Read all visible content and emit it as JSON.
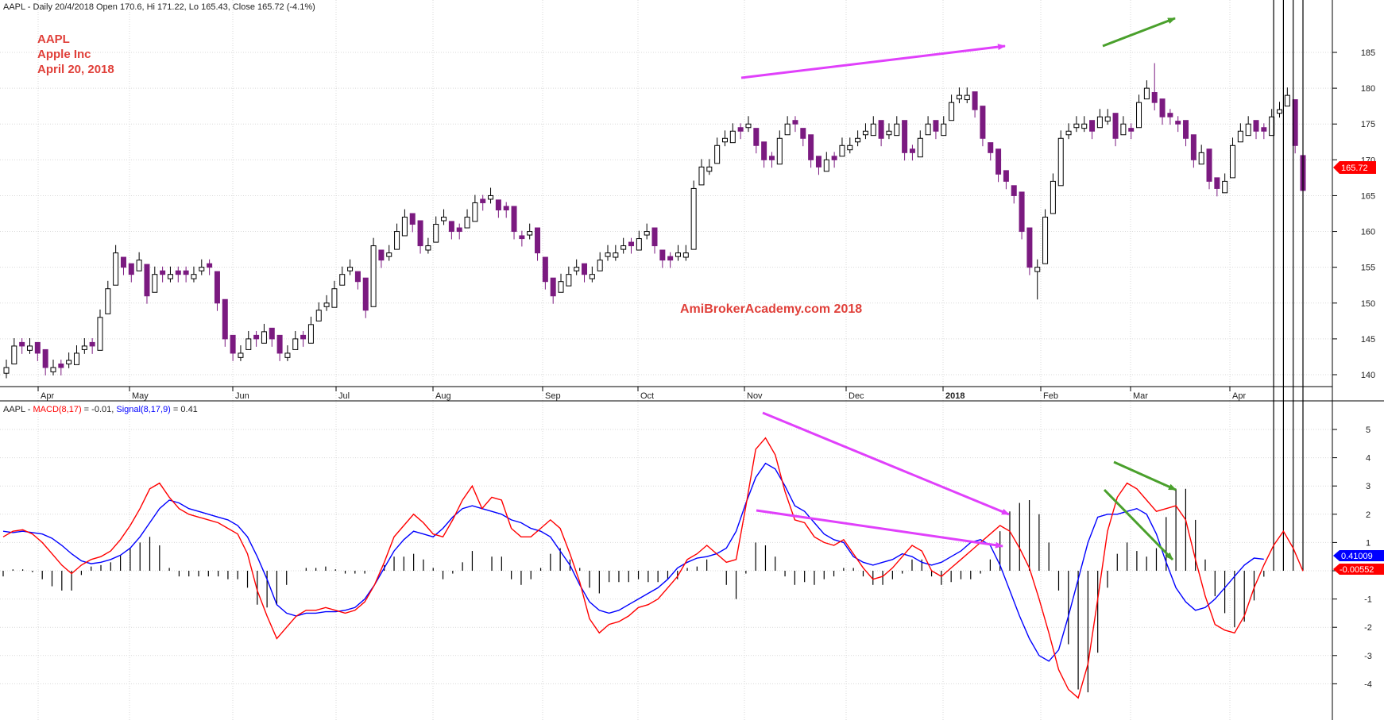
{
  "header": {
    "price_line": "AAPL - Daily 20/4/2018 Open 170.6, Hi 171.22, Lo 165.43, Close 165.72 (-4.1%)",
    "macd_prefix": "AAPL - ",
    "macd_label": "MACD(8,17)",
    "macd_value": " = -0.01, ",
    "signal_label": "Signal(8,17,9)",
    "signal_value": " = 0.41"
  },
  "annotation": {
    "line1": "AAPL",
    "line2": "Apple Inc",
    "line3": "April 20, 2018"
  },
  "watermark": "AmiBrokerAcademy.com  2018",
  "badges": {
    "close": "165.72",
    "signal": "0.41009",
    "macd": "-0.00552"
  },
  "colors": {
    "up_candle": "#000000",
    "down_candle": "#7b1a80",
    "macd": "#ff0000",
    "signal": "#0000ff",
    "histogram": "#000000",
    "divergence_magenta": "#e040fb",
    "divergence_green": "#4aa02c",
    "text_red": "#e0403a",
    "grid": "#d9d9d9"
  },
  "chart_data": [
    {
      "type": "candlestick",
      "title": "AAPL - Daily 20/4/2018",
      "y_ticks": [
        140,
        145,
        150,
        155,
        160,
        165,
        170,
        175,
        180,
        185
      ],
      "x_labels": [
        "Apr",
        "May",
        "Jun",
        "Jul",
        "Aug",
        "Sep",
        "Oct",
        "Nov",
        "Dec",
        "2018",
        "Feb",
        "Mar",
        "Apr"
      ],
      "grid": true,
      "last": {
        "open": 170.6,
        "high": 171.22,
        "low": 165.43,
        "close": 165.72
      },
      "closes": [
        141,
        144,
        144,
        144,
        143,
        141,
        141,
        141,
        142,
        143,
        144,
        144,
        148,
        152,
        157,
        155,
        154,
        156,
        151,
        154,
        154,
        154,
        154,
        154,
        154,
        155,
        155,
        150,
        145,
        143,
        143,
        145,
        145,
        146,
        145,
        143,
        143,
        145,
        145,
        147,
        149,
        150,
        152,
        154,
        155,
        153,
        149,
        158,
        156,
        157,
        160,
        162,
        161,
        158,
        158,
        161,
        162,
        160,
        160,
        162,
        164,
        164,
        165,
        163,
        163,
        160,
        159,
        160,
        157,
        153,
        151,
        153,
        154,
        155,
        154,
        154,
        156,
        157,
        157,
        158,
        158,
        159,
        160,
        158,
        156,
        156,
        157,
        157,
        166,
        169,
        169,
        172,
        173,
        174,
        174,
        175,
        172,
        170,
        170,
        173,
        175,
        175,
        173,
        170,
        169,
        170,
        170,
        172,
        172,
        173,
        174,
        175,
        173,
        174,
        175,
        171,
        171,
        173,
        175,
        174,
        175,
        178,
        179,
        179,
        177,
        173,
        171,
        168,
        167,
        165,
        160,
        155,
        155,
        162,
        167,
        173,
        174,
        175,
        175,
        174,
        176,
        176,
        173,
        175,
        174,
        178,
        180,
        178,
        176,
        176,
        175,
        173,
        170,
        171,
        167,
        166,
        167,
        172,
        174,
        175,
        174,
        174,
        176,
        177,
        179,
        172,
        165.72
      ],
      "lows": [
        139.5,
        142.9,
        142.9,
        142.9,
        141.9,
        139.9,
        139.9,
        139.9,
        140.9,
        141.9,
        142.9,
        142.9,
        146.9,
        150.9,
        155.9,
        153.9,
        152.9,
        154.9,
        149.9,
        152.9,
        152.9,
        152.9,
        152.9,
        152.9,
        152.9,
        153.9,
        153.9,
        148.9,
        143.9,
        141.9,
        141.9,
        143.9,
        143.9,
        144.9,
        143.9,
        141.9,
        141.9,
        143.9,
        143.9,
        145.9,
        147.9,
        148.9,
        150.9,
        152.9,
        153.9,
        151.9,
        147.9,
        156.9,
        154.9,
        155.9,
        158.9,
        160.9,
        159.9,
        156.9,
        156.9,
        159.9,
        160.9,
        158.9,
        158.9,
        160.9,
        162.9,
        162.9,
        163.9,
        161.9,
        161.9,
        158.9,
        157.9,
        158.9,
        155.9,
        151.9,
        149.9,
        151.9,
        152.9,
        153.9,
        152.9,
        152.9,
        154.9,
        155.9,
        155.9,
        156.9,
        156.9,
        157.9,
        158.9,
        156.9,
        154.9,
        154.9,
        155.9,
        155.9,
        164.9,
        167.9,
        167.9,
        170.9,
        171.9,
        172.9,
        172.9,
        173.9,
        170.9,
        168.9,
        168.9,
        171.9,
        173.9,
        173.9,
        171.9,
        168.9,
        167.9,
        168.9,
        168.9,
        170.9,
        170.9,
        171.9,
        172.9,
        173.9,
        171.9,
        172.9,
        173.9,
        169.9,
        169.9,
        171.9,
        173.9,
        172.9,
        173.9,
        176.9,
        177.9,
        177.9,
        175.9,
        171.9,
        169.9,
        166.9,
        165.9,
        163.9,
        158.9,
        153.9,
        150.5,
        160.9,
        165.9,
        171.9,
        172.9,
        173.9,
        173.9,
        172.9,
        174.9,
        174.9,
        171.9,
        173.9,
        172.9,
        176.9,
        178.9,
        176.9,
        174.9,
        174.9,
        173.9,
        171.9,
        168.9,
        169.9,
        165.9,
        164.9,
        165.9,
        170.9,
        172.9,
        173.9,
        172.9,
        172.9,
        174.9,
        175.9,
        177.9,
        170.9,
        165.43
      ],
      "highs": [
        142.1,
        145.1,
        145.1,
        145.1,
        144.1,
        142.1,
        142.1,
        142.1,
        143.1,
        144.1,
        145.1,
        145.1,
        149.1,
        153.1,
        158.1,
        156.1,
        155.1,
        157.1,
        152.1,
        155.1,
        155.1,
        155.1,
        155.1,
        155.1,
        155.1,
        156.1,
        156.1,
        151.1,
        146.1,
        144.1,
        144.1,
        146.1,
        146.1,
        147.1,
        146.1,
        144.1,
        144.1,
        146.1,
        146.1,
        148.1,
        150.1,
        151.1,
        153.1,
        155.1,
        156.1,
        154.1,
        150.1,
        159.1,
        157.1,
        158.1,
        161.1,
        163.1,
        162.1,
        159.1,
        159.1,
        162.1,
        163.1,
        161.1,
        161.1,
        163.1,
        165.1,
        165.1,
        166.1,
        164.1,
        164.1,
        161.1,
        160.1,
        161.1,
        158.1,
        154.1,
        152.1,
        154.1,
        155.1,
        156.1,
        155.1,
        155.1,
        157.1,
        158.1,
        158.1,
        159.1,
        159.1,
        160.1,
        161.1,
        159.1,
        157.1,
        157.1,
        158.1,
        158.1,
        167.1,
        170.1,
        170.1,
        173.1,
        174.1,
        175.1,
        175.1,
        176.1,
        173.1,
        171.1,
        171.1,
        174.1,
        176.1,
        176.1,
        174.1,
        171.1,
        170.1,
        171.1,
        171.1,
        173.1,
        173.1,
        174.1,
        175.1,
        176.1,
        174.1,
        175.1,
        176.1,
        172.1,
        172.1,
        174.1,
        176.1,
        175.1,
        176.1,
        179.1,
        180.1,
        180.1,
        178.1,
        174.1,
        172.1,
        169.1,
        168.1,
        166.1,
        161.1,
        156.1,
        156.1,
        163.1,
        168.1,
        174.1,
        175.1,
        176.1,
        176.1,
        175.1,
        177.1,
        177.1,
        174.1,
        176.1,
        175.1,
        179.1,
        181.1,
        183.5,
        177.1,
        177.1,
        176.1,
        174.1,
        171.1,
        172.1,
        168.1,
        167.1,
        168.1,
        173.1,
        175.1,
        176.1,
        175.1,
        175.1,
        177.1,
        178.1,
        180.1,
        173.1,
        171.22
      ]
    },
    {
      "type": "line",
      "title": "MACD(8,17) / Signal(8,17,9)",
      "y_ticks": [
        -4,
        -3,
        -2,
        -1,
        0,
        1,
        2,
        3,
        4,
        5
      ],
      "grid": true,
      "series": [
        {
          "name": "MACD(8,17)",
          "last": -0.00552,
          "values": [
            1.2,
            1.4,
            1.45,
            1.3,
            1.0,
            0.6,
            0.2,
            -0.1,
            0.2,
            0.4,
            0.5,
            0.7,
            1.1,
            1.6,
            2.2,
            2.9,
            3.1,
            2.6,
            2.2,
            2.0,
            1.9,
            1.8,
            1.7,
            1.5,
            1.3,
            0.6,
            -0.7,
            -1.6,
            -2.4,
            -2.0,
            -1.6,
            -1.4,
            -1.4,
            -1.3,
            -1.4,
            -1.5,
            -1.4,
            -1.1,
            -0.5,
            0.3,
            1.2,
            1.6,
            2.0,
            1.7,
            1.3,
            1.2,
            1.8,
            2.5,
            3.0,
            2.2,
            2.6,
            2.5,
            1.5,
            1.2,
            1.2,
            1.5,
            1.8,
            1.5,
            0.6,
            -0.4,
            -1.7,
            -2.2,
            -1.9,
            -1.8,
            -1.6,
            -1.3,
            -1.2,
            -1.0,
            -0.6,
            -0.2,
            0.4,
            0.6,
            0.9,
            0.6,
            0.3,
            0.4,
            2.3,
            4.3,
            4.7,
            4.1,
            2.8,
            1.8,
            1.7,
            1.2,
            1.0,
            0.9,
            1.1,
            0.6,
            0.1,
            -0.3,
            -0.2,
            0.1,
            0.5,
            0.9,
            0.7,
            0.0,
            -0.2,
            0.1,
            0.4,
            0.7,
            1.0,
            1.3,
            1.6,
            1.4,
            0.8,
            0.1,
            -1.0,
            -2.2,
            -3.5,
            -4.2,
            -4.5,
            -3.3,
            -1.0,
            1.4,
            2.6,
            3.1,
            2.9,
            2.5,
            2.1,
            2.2,
            2.3,
            1.8,
            0.4,
            -0.9,
            -1.9,
            -2.1,
            -2.2,
            -1.6,
            -0.6,
            0.2,
            0.9,
            1.4,
            0.8,
            -0.01
          ]
        },
        {
          "name": "Signal(8,17,9)",
          "last": 0.41009,
          "values": [
            1.4,
            1.35,
            1.4,
            1.35,
            1.3,
            1.15,
            0.9,
            0.6,
            0.35,
            0.25,
            0.3,
            0.4,
            0.55,
            0.8,
            1.2,
            1.7,
            2.2,
            2.5,
            2.4,
            2.2,
            2.1,
            2.0,
            1.9,
            1.8,
            1.6,
            1.2,
            0.5,
            -0.3,
            -1.2,
            -1.5,
            -1.6,
            -1.5,
            -1.5,
            -1.45,
            -1.45,
            -1.4,
            -1.3,
            -1.0,
            -0.5,
            0.1,
            0.7,
            1.1,
            1.4,
            1.3,
            1.2,
            1.5,
            1.9,
            2.2,
            2.3,
            2.2,
            2.1,
            2.0,
            1.8,
            1.7,
            1.5,
            1.4,
            1.2,
            0.7,
            0.2,
            -0.5,
            -1.1,
            -1.4,
            -1.5,
            -1.4,
            -1.2,
            -1.0,
            -0.8,
            -0.6,
            -0.3,
            0.1,
            0.3,
            0.45,
            0.5,
            0.6,
            0.8,
            1.4,
            2.4,
            3.3,
            3.8,
            3.6,
            3.0,
            2.3,
            2.1,
            1.7,
            1.3,
            1.1,
            1.0,
            0.5,
            0.3,
            0.2,
            0.3,
            0.4,
            0.6,
            0.5,
            0.3,
            0.2,
            0.3,
            0.5,
            0.7,
            1.0,
            1.1,
            0.9,
            0.2,
            -0.7,
            -1.6,
            -2.4,
            -3.0,
            -3.2,
            -2.8,
            -1.6,
            -0.3,
            1.0,
            1.9,
            2.0,
            2.0,
            2.1,
            2.2,
            2.0,
            1.3,
            0.3,
            -0.6,
            -1.1,
            -1.4,
            -1.3,
            -1.0,
            -0.6,
            -0.2,
            0.2,
            0.45,
            0.41
          ]
        }
      ]
    }
  ]
}
